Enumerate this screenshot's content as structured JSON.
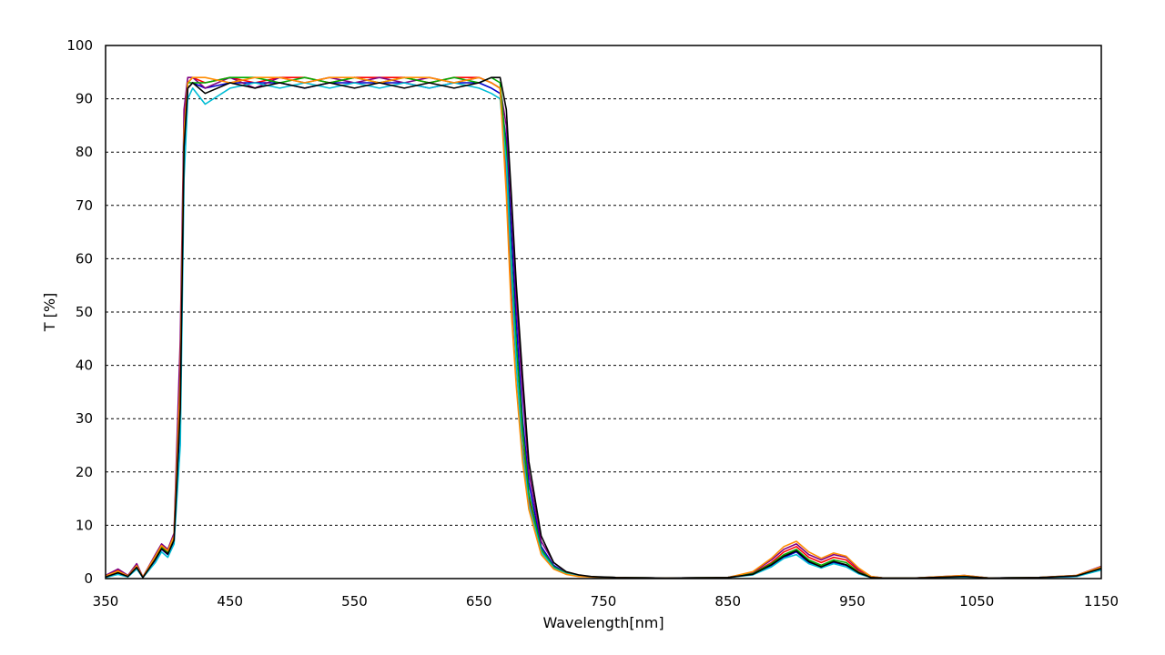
{
  "chart_data": {
    "type": "line",
    "title": "",
    "xlabel": "Wavelength[nm]",
    "ylabel": "T [%]",
    "xlim": [
      350,
      1150
    ],
    "ylim": [
      0,
      100
    ],
    "x_ticks": [
      350,
      450,
      550,
      650,
      750,
      850,
      950,
      1050,
      1150
    ],
    "y_ticks": [
      0,
      10,
      20,
      30,
      40,
      50,
      60,
      70,
      80,
      90,
      100
    ],
    "x_tick_labels": [
      "350",
      "450",
      "550",
      "650",
      "750",
      "850",
      "950",
      "1050",
      "1150"
    ],
    "y_tick_labels": [
      "0",
      "10",
      "20",
      "30",
      "40",
      "50",
      "60",
      "70",
      "80",
      "90",
      "100"
    ],
    "grid": "horizontal dashed",
    "legend": "none",
    "series": [
      {
        "color": "#ff0000",
        "x": [
          350,
          360,
          368,
          375,
          380,
          390,
          395,
          400,
          405,
          410,
          413,
          416,
          420,
          430,
          450,
          470,
          490,
          510,
          530,
          550,
          570,
          590,
          610,
          630,
          650,
          660,
          667,
          672,
          676,
          680,
          685,
          690,
          700,
          710,
          720,
          730,
          740,
          760,
          800,
          850,
          870,
          885,
          895,
          905,
          915,
          925,
          935,
          945,
          955,
          965,
          975,
          1000,
          1040,
          1060,
          1100,
          1130,
          1150
        ],
        "y": [
          0.5,
          1.5,
          0.5,
          2.5,
          0.3,
          4,
          6,
          5,
          8,
          40,
          85,
          93,
          94,
          93,
          94,
          93,
          94,
          94,
          93,
          94,
          94,
          94,
          93,
          94,
          94,
          93,
          92,
          75,
          55,
          40,
          25,
          15,
          5,
          2,
          1,
          0.5,
          0.3,
          0.2,
          0.1,
          0.2,
          1,
          3,
          5,
          6,
          4,
          3,
          4,
          3.5,
          1.5,
          0.3,
          0.1,
          0.1,
          0.5,
          0.1,
          0.2,
          0.5,
          2
        ]
      },
      {
        "color": "#0000cc",
        "x": [
          350,
          360,
          368,
          375,
          380,
          390,
          395,
          400,
          405,
          410,
          413,
          416,
          420,
          430,
          450,
          470,
          490,
          510,
          530,
          550,
          570,
          590,
          610,
          630,
          650,
          660,
          667,
          672,
          676,
          680,
          685,
          690,
          700,
          710,
          720,
          730,
          740,
          760,
          800,
          850,
          870,
          885,
          895,
          905,
          915,
          925,
          935,
          945,
          955,
          965,
          975,
          1000,
          1040,
          1060,
          1100,
          1130,
          1150
        ],
        "y": [
          0.3,
          1,
          0.4,
          2,
          0.2,
          3.5,
          5.5,
          4.5,
          7,
          30,
          80,
          92,
          93,
          92,
          93,
          93,
          93,
          92,
          93,
          93,
          93,
          93,
          92,
          93,
          93,
          92,
          91,
          82,
          65,
          48,
          30,
          18,
          6,
          2.5,
          1,
          0.6,
          0.3,
          0.2,
          0.1,
          0.2,
          0.8,
          2.5,
          4,
          5,
          3,
          2,
          3,
          2.5,
          1,
          0.2,
          0.1,
          0.1,
          0.4,
          0.1,
          0.2,
          0.4,
          1.8
        ]
      },
      {
        "color": "#800080",
        "x": [
          350,
          360,
          368,
          375,
          380,
          390,
          395,
          400,
          405,
          410,
          413,
          416,
          420,
          430,
          450,
          470,
          490,
          510,
          530,
          550,
          570,
          590,
          610,
          630,
          650,
          660,
          667,
          672,
          676,
          680,
          685,
          690,
          700,
          710,
          720,
          730,
          740,
          760,
          800,
          850,
          870,
          885,
          895,
          905,
          915,
          925,
          935,
          945,
          955,
          965,
          975,
          1000,
          1040,
          1060,
          1100,
          1130,
          1150
        ],
        "y": [
          0.6,
          1.8,
          0.6,
          2.8,
          0.3,
          4.5,
          6.5,
          5.5,
          8.5,
          45,
          88,
          94,
          94,
          92,
          94,
          92,
          94,
          93,
          94,
          93,
          94,
          93,
          94,
          93,
          94,
          93,
          92,
          85,
          70,
          52,
          35,
          20,
          7,
          3,
          1.2,
          0.6,
          0.3,
          0.2,
          0.1,
          0.2,
          1.2,
          3.5,
          5.5,
          6.5,
          4.5,
          3.5,
          4.5,
          4,
          1.8,
          0.4,
          0.1,
          0.1,
          0.6,
          0.1,
          0.2,
          0.6,
          2.3
        ]
      },
      {
        "color": "#00aa00",
        "x": [
          350,
          360,
          368,
          375,
          380,
          390,
          395,
          400,
          405,
          410,
          413,
          416,
          420,
          430,
          450,
          470,
          490,
          510,
          530,
          550,
          570,
          590,
          610,
          630,
          650,
          660,
          667,
          672,
          676,
          680,
          685,
          690,
          700,
          710,
          720,
          730,
          740,
          760,
          800,
          850,
          870,
          885,
          895,
          905,
          915,
          925,
          935,
          945,
          955,
          965,
          975,
          1000,
          1040,
          1060,
          1100,
          1130,
          1150
        ],
        "y": [
          0.4,
          1.2,
          0.5,
          2.2,
          0.2,
          3.8,
          5.8,
          4.8,
          7.5,
          35,
          82,
          93,
          93,
          93,
          94,
          94,
          93,
          94,
          93,
          94,
          93,
          94,
          93,
          94,
          93,
          94,
          93,
          80,
          60,
          44,
          28,
          16,
          5.5,
          2.2,
          1,
          0.5,
          0.3,
          0.2,
          0.1,
          0.2,
          0.9,
          2.8,
          4.5,
          5.5,
          3.5,
          2.5,
          3.5,
          3,
          1.2,
          0.3,
          0.1,
          0.1,
          0.5,
          0.1,
          0.2,
          0.5,
          2
        ]
      },
      {
        "color": "#00bcd4",
        "x": [
          350,
          360,
          368,
          375,
          380,
          390,
          395,
          400,
          405,
          410,
          413,
          416,
          420,
          430,
          450,
          470,
          490,
          510,
          530,
          550,
          570,
          590,
          610,
          630,
          650,
          660,
          667,
          672,
          676,
          680,
          685,
          690,
          700,
          710,
          720,
          730,
          740,
          760,
          800,
          850,
          870,
          885,
          895,
          905,
          915,
          925,
          935,
          945,
          955,
          965,
          975,
          1000,
          1040,
          1060,
          1100,
          1130,
          1150
        ],
        "y": [
          0.2,
          0.8,
          0.3,
          1.8,
          0.2,
          3,
          5,
          4,
          6.5,
          25,
          75,
          90,
          92,
          89,
          92,
          93,
          92,
          93,
          92,
          93,
          92,
          93,
          92,
          93,
          92,
          91,
          90,
          78,
          58,
          40,
          24,
          14,
          5,
          2,
          0.9,
          0.5,
          0.3,
          0.2,
          0.1,
          0.2,
          0.7,
          2.2,
          3.8,
          4.5,
          2.8,
          2,
          2.8,
          2.2,
          0.9,
          0.2,
          0.1,
          0.1,
          0.3,
          0.1,
          0.2,
          0.4,
          1.6
        ]
      },
      {
        "color": "#ff8c00",
        "x": [
          350,
          360,
          368,
          375,
          380,
          390,
          395,
          400,
          405,
          410,
          413,
          416,
          420,
          430,
          450,
          470,
          490,
          510,
          530,
          550,
          570,
          590,
          610,
          630,
          650,
          660,
          667,
          672,
          676,
          680,
          685,
          690,
          700,
          710,
          720,
          730,
          740,
          760,
          800,
          850,
          870,
          885,
          895,
          905,
          915,
          925,
          935,
          945,
          955,
          965,
          975,
          1000,
          1040,
          1060,
          1100,
          1130,
          1150
        ],
        "y": [
          0.5,
          1.4,
          0.5,
          2.4,
          0.3,
          4.2,
          6.2,
          5.2,
          8,
          38,
          84,
          93,
          94,
          94,
          93,
          94,
          94,
          93,
          94,
          94,
          93,
          94,
          94,
          93,
          94,
          93,
          92,
          72,
          50,
          36,
          22,
          13,
          4.5,
          1.8,
          0.8,
          0.4,
          0.3,
          0.2,
          0.1,
          0.2,
          1.3,
          3.8,
          6,
          7,
          5,
          3.8,
          4.8,
          4.2,
          2,
          0.4,
          0.1,
          0.1,
          0.6,
          0.1,
          0.2,
          0.6,
          2.2
        ]
      },
      {
        "color": "#000000",
        "x": [
          350,
          360,
          368,
          375,
          380,
          390,
          395,
          400,
          405,
          410,
          413,
          416,
          420,
          430,
          450,
          470,
          490,
          510,
          530,
          550,
          570,
          590,
          610,
          630,
          650,
          660,
          667,
          672,
          676,
          680,
          685,
          690,
          700,
          710,
          720,
          730,
          740,
          760,
          800,
          850,
          870,
          885,
          895,
          905,
          915,
          925,
          935,
          945,
          955,
          965,
          975,
          1000,
          1040,
          1060,
          1100,
          1130,
          1150
        ],
        "y": [
          0.3,
          1.1,
          0.4,
          2.1,
          0.2,
          3.6,
          5.6,
          4.6,
          7.2,
          32,
          81,
          92,
          93,
          91,
          93,
          92,
          93,
          92,
          93,
          92,
          93,
          92,
          93,
          92,
          93,
          94,
          94,
          88,
          72,
          55,
          38,
          22,
          8,
          3,
          1.3,
          0.7,
          0.4,
          0.2,
          0.1,
          0.2,
          0.8,
          2.6,
          4.2,
          5.2,
          3.2,
          2.2,
          3.2,
          2.6,
          1.1,
          0.2,
          0.1,
          0.1,
          0.4,
          0.1,
          0.2,
          0.5,
          1.9
        ]
      }
    ]
  }
}
